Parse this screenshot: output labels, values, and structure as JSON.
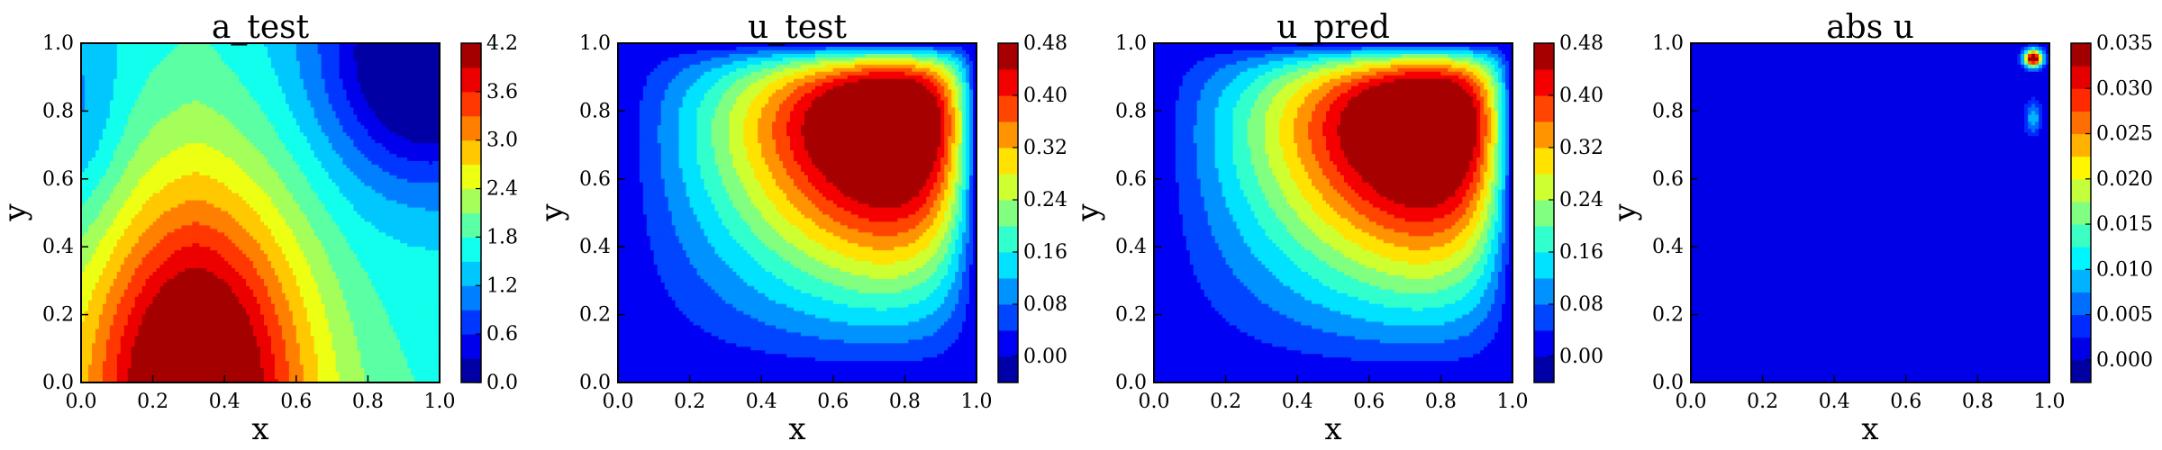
{
  "chart_data": [
    {
      "type": "heatmap",
      "title": "a_test",
      "xlabel": "x",
      "ylabel": "y",
      "xlim": [
        0,
        1
      ],
      "ylim": [
        0,
        1
      ],
      "xticks": [
        "0.0",
        "0.2",
        "0.4",
        "0.6",
        "0.8",
        "1.0"
      ],
      "yticks": [
        "0.0",
        "0.2",
        "0.4",
        "0.6",
        "0.8",
        "1.0"
      ],
      "colorbar": {
        "range": [
          0,
          4.2
        ],
        "levels": 14,
        "ticks": [
          "0.0",
          "0.6",
          "1.2",
          "1.8",
          "2.4",
          "3.0",
          "3.6",
          "4.2"
        ],
        "tick_values": [
          0,
          0.6,
          1.2,
          1.8,
          2.4,
          3.0,
          3.6,
          4.2
        ]
      },
      "features": {
        "peak": {
          "x": 0.32,
          "y": 0.0,
          "value": 4.2
        },
        "trough": {
          "x": 0.95,
          "y": 0.92,
          "value": 0.0
        },
        "ridge_top_x": 0.32
      }
    },
    {
      "type": "heatmap",
      "title": "u_test",
      "xlabel": "x",
      "ylabel": "y",
      "xlim": [
        0,
        1
      ],
      "ylim": [
        0,
        1
      ],
      "xticks": [
        "0.0",
        "0.2",
        "0.4",
        "0.6",
        "0.8",
        "1.0"
      ],
      "yticks": [
        "0.0",
        "0.2",
        "0.4",
        "0.6",
        "0.8",
        "1.0"
      ],
      "colorbar": {
        "range": [
          -0.04,
          0.48
        ],
        "levels": 13,
        "ticks": [
          "0.00",
          "0.08",
          "0.16",
          "0.24",
          "0.32",
          "0.40",
          "0.48"
        ],
        "tick_values": [
          0,
          0.08,
          0.16,
          0.24,
          0.32,
          0.4,
          0.48
        ]
      },
      "features": {
        "peak": {
          "x": 0.78,
          "y": 0.76,
          "value": 0.48
        },
        "boundary_value": 0.0
      }
    },
    {
      "type": "heatmap",
      "title": "u_pred",
      "xlabel": "x",
      "ylabel": "y",
      "xlim": [
        0,
        1
      ],
      "ylim": [
        0,
        1
      ],
      "xticks": [
        "0.0",
        "0.2",
        "0.4",
        "0.6",
        "0.8",
        "1.0"
      ],
      "yticks": [
        "0.0",
        "0.2",
        "0.4",
        "0.6",
        "0.8",
        "1.0"
      ],
      "colorbar": {
        "range": [
          -0.04,
          0.48
        ],
        "levels": 13,
        "ticks": [
          "0.00",
          "0.08",
          "0.16",
          "0.24",
          "0.32",
          "0.40",
          "0.48"
        ],
        "tick_values": [
          0,
          0.08,
          0.16,
          0.24,
          0.32,
          0.4,
          0.48
        ]
      },
      "features": {
        "peak": {
          "x": 0.78,
          "y": 0.76,
          "value": 0.48
        },
        "boundary_value": 0.0
      }
    },
    {
      "type": "heatmap",
      "title": "abs u",
      "xlabel": "x",
      "ylabel": "y",
      "xlim": [
        0,
        1
      ],
      "ylim": [
        0,
        1
      ],
      "xticks": [
        "0.0",
        "0.2",
        "0.4",
        "0.6",
        "0.8",
        "1.0"
      ],
      "yticks": [
        "0.0",
        "0.2",
        "0.4",
        "0.6",
        "0.8",
        "1.0"
      ],
      "colorbar": {
        "range": [
          -0.0025,
          0.035
        ],
        "levels": 15,
        "ticks": [
          "0.000",
          "0.005",
          "0.010",
          "0.015",
          "0.020",
          "0.025",
          "0.030",
          "0.035"
        ],
        "tick_values": [
          0,
          0.005,
          0.01,
          0.015,
          0.02,
          0.025,
          0.03,
          0.035
        ]
      },
      "features": {
        "hotspot": {
          "x": 0.955,
          "y": 0.955,
          "value": 0.035
        },
        "background_value": 0.0
      }
    }
  ]
}
